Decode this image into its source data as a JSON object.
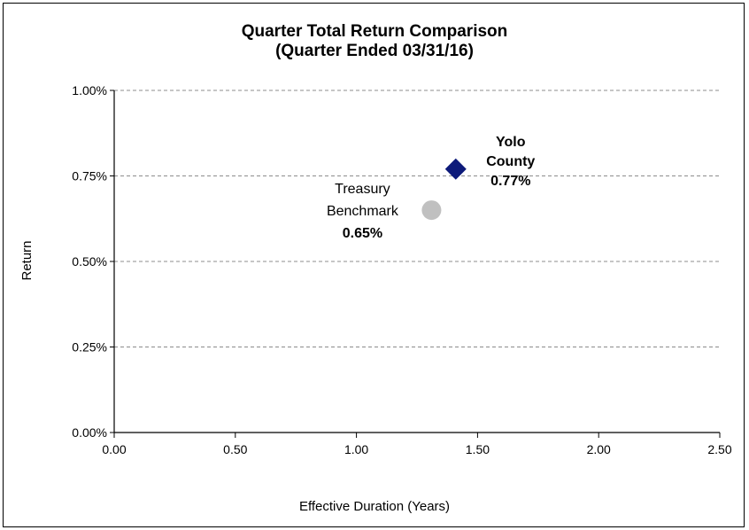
{
  "chart_data": {
    "type": "scatter",
    "title": "Quarter Total Return Comparison",
    "subtitle": "(Quarter Ended 03/31/16)",
    "xlabel": "Effective Duration (Years)",
    "ylabel": "Return",
    "xlim": [
      0,
      2.5
    ],
    "ylim": [
      0,
      1.0
    ],
    "x_ticks": [
      "0.00",
      "0.50",
      "1.00",
      "1.50",
      "2.00",
      "2.50"
    ],
    "y_ticks": [
      "0.00%",
      "0.25%",
      "0.50%",
      "0.75%",
      "1.00%"
    ],
    "grid": "horizontal dashed",
    "points": [
      {
        "name": "Yolo County",
        "label_lines": [
          "Yolo",
          "County"
        ],
        "value_label": "0.77%",
        "x": 1.41,
        "y": 0.77,
        "marker": "diamond",
        "color": "#0d1a7a"
      },
      {
        "name": "Treasury Benchmark",
        "label_lines": [
          "Treasury",
          "Benchmark"
        ],
        "value_label": "0.65%",
        "x": 1.31,
        "y": 0.65,
        "marker": "circle",
        "color": "#c0c0c0"
      }
    ]
  }
}
